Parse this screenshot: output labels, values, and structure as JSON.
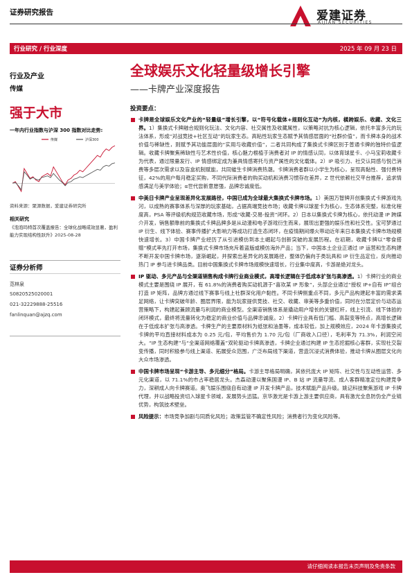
{
  "header": {
    "report_type": "证券研究报告",
    "logo_cn": "爱建证券",
    "logo_en": "AIJIAN SECURITIES"
  },
  "bar": {
    "breadcrumb": "行业研究 / 行业深度",
    "date": "2025 年 09 月 23 日"
  },
  "left": {
    "industry_label": "行业及产业",
    "industry_name": "传媒",
    "rating": "强于大市",
    "chart_title": "一年内行业指数与沪深 300 指数对比走势:",
    "chart_source": "资料来源：聚源数据，爱建证券研究所",
    "related_title": "相关研究",
    "related_text": "《泡泡玛特首次覆盖报告：全球化战略成效显著，盈利能力实现结构性跃升》2025-08-28",
    "analyst_title": "证券分析师",
    "analyst_name": "范林泉",
    "analyst_cert": "S0820525020001",
    "analyst_phone": "021-32229888-25516",
    "analyst_email": "fanlinquan@ajzq.com"
  },
  "title": {
    "main": "全球娱乐文化轻量级增长引擎",
    "sub": "——卡牌产业深度报告"
  },
  "points": {
    "title": "投资要点：",
    "items": [
      {
        "lead": "卡牌是全球娱乐文化产业的“轻量级”增长引擎，以“符号化载体+规则化互动”为内核，横跨娱乐、收藏、文化三界。",
        "text": "1）集换式卡牌融合规则化玩法、文化内容、社交属性及收藏属性，以策略对抗为核心逻辑，依托丰富多元的玩法体系，形成“对战竞技+社区互动”的玩家生态。高粘性玩家生态赋予其情感层面的“社群价值”，而卡牌本身的战术价值与稀缺性，则赋予其功能层面的“实用与收藏价值”，二者共同构成了集换式卡牌区别于普通卡牌的独特价值逻辑。收藏卡牌聚焦稀缺性与艺术性价值，核心魅力根植于消费者对 IP 的情感认同，以体育球星卡、小马宝莉收藏卡为代表，通过限量发行、IP 情感绑定成为兼具情感寄托与资产属性的文化载体。2）IP 吸引力、社交认同感与悦己消费等多层次需求以及盲盒机制赋能，共同催生卡牌消费热潮。卡牌消费者群以小学生为核心，呈现高黏性、强付费特征，42%的用户每月稳定买购，不同代际消费者的购买动机和消费习惯存在差异，Z 世代依赖社交平台推荐，追求情感满足与美学体验；α世代尝新意愿强，品牌忠诚度低。"
      },
      {
        "lead": "中美日卡牌产业呈现差异化发展路径，中国已成为全球最大集换式卡牌市场。",
        "text": "1）美国万智牌开创集换式卡牌游戏先河，以成熟的赛事体系与深厚的玩家基础，占据高端竞技市场；收藏卡牌以球星卡为核心，生态体系完整，标准化程度高，PSA 等评级机构规范收藏市场，形成“收藏-交易-投资”闭环。2）日本以集换式卡牌为核心，依托动漫 IP 跨媒介开发，销售额靠前的集换式卡牌品牌多是从动漫和电子游戏衍生而来，展现出更强的娱乐性和社交性。宝可梦通过 IP 衍生、线下体验、赛事传播扩大影响力等成功打造生态闭环，在疫情期间爆火带动近年来日本集换式卡牌市场规模快速增长。3）中国卡牌产业经历了从引进模仿到本土崛起与创新突破的发展历程。在初期，收藏卡牌以“零食搭赠”模式率先打开市场，集换式卡牌市场充斥着盗版或模仿海外产品；当下，中国本土企业正通过 IP 运营和生态构建不断开发中国卡牌市场，逐渐崛起，并探索出差异化的发展路径，整体仍偏向于类玩具和 IP 衍生品定位，反向推动热门 IP 参与进卡牌品类。目前中国集换式卡牌市场规模快速增长，行业集中度高，卡游是绝对龙头。"
      },
      {
        "lead": "IP 驱动、多元产品与全渠道销售构成卡牌行业商业模式，高增长逻辑在于低成本扩张与高渗透。",
        "text": "1）卡牌行业的商业模式主要是围绕 IP 展开，有 61.8%的消费者购买动机源于“喜欢某 IP 形象”，头部企业通过“授权 IP+自有 IP”组合打造 IP 矩阵，品牌方通过线下赛事与线上社群深化用户黏性。不同卡牌侧重点不同，多元产品构建起丰富的需求满足网络，让卡牌突破年龄、圈层界限，能为玩家提供竞技、社交、收藏、审美等多重价值，同时在分层定价与动态运营策略下，构建起兼顾流量与利润的商业模型。全渠道销售体系是撬动用户增长的关键杠杆，线上引流、线下体验的闭环模式，最终将流量转化为稳定的商业价值与品牌忠诚度。2）卡牌行业具有低门槛、高裂变等特点，高增长逻辑在于低成本扩张与高渗透。卡牌生产的主要原材料为纸张和油墨等，成本较低，加上规模效应，2024 年卡游集换式卡牌的平均直接材料成本为 0.25 元/包，平均售价为 1.70 元/包（厂商收入口径），毛利率为 71.3%，利润空间大。“IP 生态构建”与“全渠道网络覆盖”双轮驱动卡牌高渗透，卡牌企业通过构建 IP 生态挖掘核心客群，实现社交裂变传播，同时积极参与线上渠道、拓展受众范围，广泛布局线下渠道，营造沉浸式消费体验，推动卡牌从圈层文化向大众市场渗透。"
      },
      {
        "lead": "中国卡牌市场呈现“卡游主导、多元细分”格局。",
        "text": "卡游主导格局明确，其依托庞大 IP 矩阵、社交性与互动性运营、多元化渠道，以 71.1%的市占率稳居龙头。杰森动漫以聚焦国漫 IP、B 站 IP 流量导流、成人客群精准定位构建竞争力，深耕成人向卡牌赛道。奥飞娱乐围绕自有动漫 IP 开发卡牌产品，技术赋能产品升级。姚记科技聚焦游戏 IP 卡牌代理，并以战略投资切入球星卡领域，发展势头迅猛。京华激光是卡游上游主要供应商，具有激光全息防伪全产业链优势，构筑技术壁垒。"
      },
      {
        "lead": "风险提示：",
        "text": "市场竞争加剧与同质化风险；政策监管不确定性风险；消费者行为变化风险等。"
      }
    ]
  },
  "footer": {
    "text": "请仔细阅读本报告末页声明及免责条款"
  },
  "colors": {
    "brand_red": "#c8102e",
    "industry_line": "#c8102e",
    "hs300_line": "#555555"
  },
  "chart_data": {
    "type": "line",
    "title": "一年内行业指数与沪深 300 指数对比走势:",
    "series": [
      {
        "name": "传媒",
        "values": [
          0,
          2,
          -4,
          -10,
          18,
          12,
          6,
          8,
          4,
          2,
          8,
          10,
          12,
          9,
          20,
          14,
          8,
          2,
          -2,
          4,
          6,
          10,
          12,
          16,
          14,
          18,
          22,
          26,
          30,
          34,
          32,
          38,
          42,
          40,
          44,
          46
        ]
      },
      {
        "name": "沪深300",
        "values": [
          0,
          1,
          -3,
          -8,
          14,
          10,
          5,
          7,
          5,
          4,
          7,
          8,
          9,
          7,
          12,
          8,
          4,
          1,
          -3,
          1,
          2,
          5,
          6,
          8,
          7,
          9,
          11,
          13,
          15,
          17,
          16,
          20,
          22,
          21,
          24,
          25
        ]
      }
    ],
    "grid": false,
    "legend": "top"
  }
}
